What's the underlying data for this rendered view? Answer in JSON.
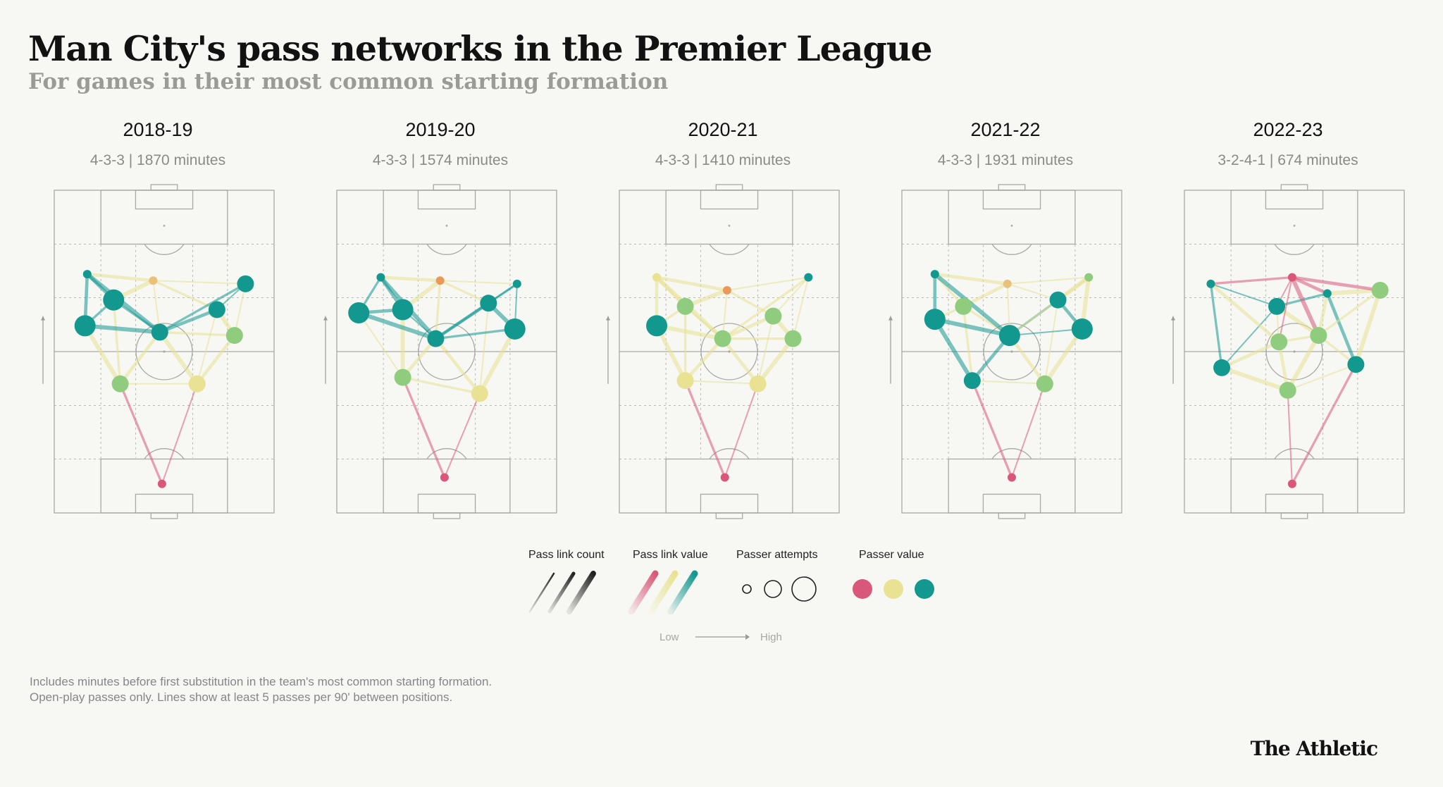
{
  "header": {
    "title": "Man City's pass networks in the Premier League",
    "subtitle": "For games in their most common starting formation"
  },
  "colors": {
    "low": "#d9587a",
    "mid": "#e8e292",
    "midgreen": "#8fcc7e",
    "high": "#12988f",
    "orange": "#e99a5a",
    "gold": "#e8c27a"
  },
  "legend": {
    "pass_link_count": "Pass link count",
    "pass_link_value": "Pass link value",
    "passer_attempts": "Passer attempts",
    "passer_value": "Passer value",
    "low": "Low",
    "high": "High"
  },
  "notes": [
    "Includes minutes before first substitution in the team's most common starting formation.",
    "Open-play passes only. Lines show at least 5 passes per 90' between positions."
  ],
  "brand": "The Athletic",
  "chart_data": [
    {
      "type": "network",
      "season": "2018-19",
      "subtitle": "4-3-3 | 1870 minutes",
      "nodes": [
        {
          "id": "GK",
          "x": 0.49,
          "y": 0.09,
          "value": "low",
          "attempts": "small"
        },
        {
          "id": "CB1",
          "x": 0.3,
          "y": 0.4,
          "value": "midgreen",
          "attempts": "medium"
        },
        {
          "id": "CB2",
          "x": 0.65,
          "y": 0.4,
          "value": "mid",
          "attempts": "medium"
        },
        {
          "id": "FB1",
          "x": 0.14,
          "y": 0.58,
          "value": "high",
          "attempts": "large"
        },
        {
          "id": "DM",
          "x": 0.48,
          "y": 0.56,
          "value": "high",
          "attempts": "medium"
        },
        {
          "id": "FB2",
          "x": 0.82,
          "y": 0.55,
          "value": "midgreen",
          "attempts": "medium"
        },
        {
          "id": "CM1",
          "x": 0.27,
          "y": 0.66,
          "value": "high",
          "attempts": "large"
        },
        {
          "id": "CM2",
          "x": 0.74,
          "y": 0.63,
          "value": "high",
          "attempts": "medium"
        },
        {
          "id": "W1",
          "x": 0.15,
          "y": 0.74,
          "value": "high",
          "attempts": "small"
        },
        {
          "id": "ST",
          "x": 0.45,
          "y": 0.72,
          "value": "gold",
          "attempts": "small"
        },
        {
          "id": "W2",
          "x": 0.87,
          "y": 0.71,
          "value": "high",
          "attempts": "medium"
        }
      ]
    },
    {
      "type": "network",
      "season": "2019-20",
      "subtitle": "4-3-3 | 1574 minutes",
      "nodes": [
        {
          "id": "GK",
          "x": 0.49,
          "y": 0.11,
          "value": "low",
          "attempts": "small"
        },
        {
          "id": "CB1",
          "x": 0.3,
          "y": 0.42,
          "value": "midgreen",
          "attempts": "medium"
        },
        {
          "id": "CB2",
          "x": 0.65,
          "y": 0.37,
          "value": "mid",
          "attempts": "medium"
        },
        {
          "id": "FB1",
          "x": 0.1,
          "y": 0.62,
          "value": "high",
          "attempts": "large"
        },
        {
          "id": "DM",
          "x": 0.45,
          "y": 0.54,
          "value": "high",
          "attempts": "medium"
        },
        {
          "id": "FB2",
          "x": 0.81,
          "y": 0.57,
          "value": "high",
          "attempts": "large"
        },
        {
          "id": "CM1",
          "x": 0.3,
          "y": 0.63,
          "value": "high",
          "attempts": "large"
        },
        {
          "id": "CM2",
          "x": 0.69,
          "y": 0.65,
          "value": "high",
          "attempts": "medium"
        },
        {
          "id": "W1",
          "x": 0.2,
          "y": 0.73,
          "value": "high",
          "attempts": "small"
        },
        {
          "id": "ST",
          "x": 0.47,
          "y": 0.72,
          "value": "orange",
          "attempts": "small"
        },
        {
          "id": "W2",
          "x": 0.82,
          "y": 0.71,
          "value": "high",
          "attempts": "small"
        }
      ]
    },
    {
      "type": "network",
      "season": "2020-21",
      "subtitle": "4-3-3 | 1410 minutes",
      "nodes": [
        {
          "id": "GK",
          "x": 0.48,
          "y": 0.11,
          "value": "low",
          "attempts": "small"
        },
        {
          "id": "CB1",
          "x": 0.3,
          "y": 0.41,
          "value": "mid",
          "attempts": "medium"
        },
        {
          "id": "CB2",
          "x": 0.63,
          "y": 0.4,
          "value": "mid",
          "attempts": "medium"
        },
        {
          "id": "FB1",
          "x": 0.17,
          "y": 0.58,
          "value": "high",
          "attempts": "large"
        },
        {
          "id": "DM",
          "x": 0.47,
          "y": 0.54,
          "value": "midgreen",
          "attempts": "medium"
        },
        {
          "id": "FB2",
          "x": 0.79,
          "y": 0.54,
          "value": "midgreen",
          "attempts": "medium"
        },
        {
          "id": "CM1",
          "x": 0.3,
          "y": 0.64,
          "value": "midgreen",
          "attempts": "medium"
        },
        {
          "id": "CM2",
          "x": 0.7,
          "y": 0.61,
          "value": "midgreen",
          "attempts": "medium"
        },
        {
          "id": "W1",
          "x": 0.17,
          "y": 0.73,
          "value": "mid",
          "attempts": "small"
        },
        {
          "id": "ST",
          "x": 0.49,
          "y": 0.69,
          "value": "orange",
          "attempts": "small"
        },
        {
          "id": "W2",
          "x": 0.86,
          "y": 0.73,
          "value": "high",
          "attempts": "small"
        }
      ]
    },
    {
      "type": "network",
      "season": "2021-22",
      "subtitle": "4-3-3 | 1931 minutes",
      "nodes": [
        {
          "id": "GK",
          "x": 0.5,
          "y": 0.11,
          "value": "low",
          "attempts": "small"
        },
        {
          "id": "CB1",
          "x": 0.32,
          "y": 0.41,
          "value": "high",
          "attempts": "medium"
        },
        {
          "id": "CB2",
          "x": 0.65,
          "y": 0.4,
          "value": "midgreen",
          "attempts": "medium"
        },
        {
          "id": "FB1",
          "x": 0.15,
          "y": 0.6,
          "value": "high",
          "attempts": "large"
        },
        {
          "id": "DM",
          "x": 0.49,
          "y": 0.55,
          "value": "high",
          "attempts": "large"
        },
        {
          "id": "FB2",
          "x": 0.82,
          "y": 0.57,
          "value": "high",
          "attempts": "large"
        },
        {
          "id": "CM1",
          "x": 0.28,
          "y": 0.64,
          "value": "midgreen",
          "attempts": "medium"
        },
        {
          "id": "CM2",
          "x": 0.71,
          "y": 0.66,
          "value": "high",
          "attempts": "medium"
        },
        {
          "id": "W1",
          "x": 0.15,
          "y": 0.74,
          "value": "high",
          "attempts": "small"
        },
        {
          "id": "ST",
          "x": 0.48,
          "y": 0.71,
          "value": "gold",
          "attempts": "small"
        },
        {
          "id": "W2",
          "x": 0.85,
          "y": 0.73,
          "value": "midgreen",
          "attempts": "small"
        }
      ]
    },
    {
      "type": "network",
      "season": "2022-23",
      "subtitle": "3-2-4-1 | 674 minutes",
      "nodes": [
        {
          "id": "GK",
          "x": 0.49,
          "y": 0.09,
          "value": "low",
          "attempts": "small"
        },
        {
          "id": "CB1",
          "x": 0.17,
          "y": 0.45,
          "value": "high",
          "attempts": "medium"
        },
        {
          "id": "CB2",
          "x": 0.47,
          "y": 0.38,
          "value": "midgreen",
          "attempts": "medium"
        },
        {
          "id": "CB3",
          "x": 0.78,
          "y": 0.46,
          "value": "high",
          "attempts": "medium"
        },
        {
          "id": "CM1",
          "x": 0.43,
          "y": 0.53,
          "value": "midgreen",
          "attempts": "medium"
        },
        {
          "id": "CM2",
          "x": 0.61,
          "y": 0.55,
          "value": "midgreen",
          "attempts": "medium"
        },
        {
          "id": "AM1",
          "x": 0.42,
          "y": 0.64,
          "value": "high",
          "attempts": "medium"
        },
        {
          "id": "AM2",
          "x": 0.65,
          "y": 0.68,
          "value": "high",
          "attempts": "small"
        },
        {
          "id": "W1",
          "x": 0.12,
          "y": 0.71,
          "value": "high",
          "attempts": "small"
        },
        {
          "id": "ST",
          "x": 0.49,
          "y": 0.73,
          "value": "low",
          "attempts": "small"
        },
        {
          "id": "W2",
          "x": 0.89,
          "y": 0.69,
          "value": "midgreen",
          "attempts": "medium"
        }
      ]
    }
  ]
}
